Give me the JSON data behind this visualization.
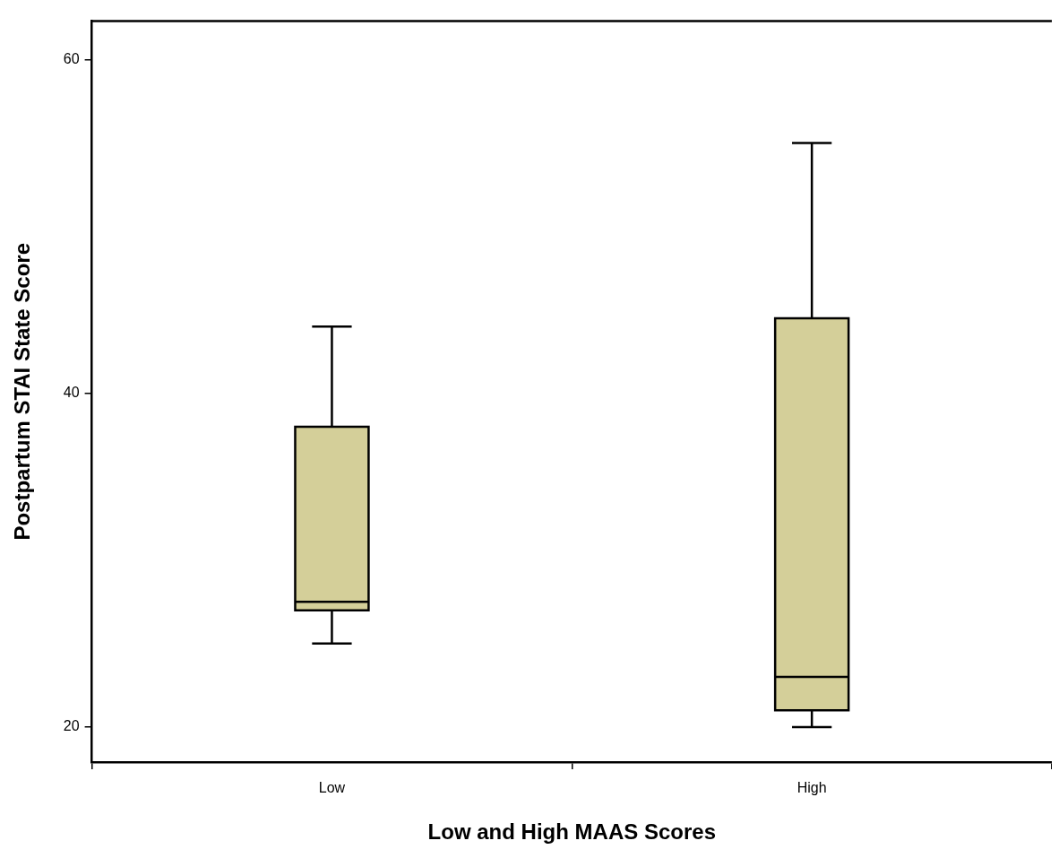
{
  "chart_data": {
    "type": "box",
    "xlabel": "Low and High MAAS Scores",
    "ylabel": "Postpartum STAI State Score",
    "categories": [
      "Low",
      "High"
    ],
    "series": [
      {
        "color": "#d4cf99",
        "boxes": [
          {
            "low": 25,
            "q1": 27,
            "median": 27.5,
            "q3": 38,
            "high": 44
          },
          {
            "low": 20,
            "q1": 21,
            "median": 23,
            "q3": 44.5,
            "high": 55
          }
        ]
      }
    ],
    "ylim": [
      17.9,
      62.3
    ],
    "yticks": [
      20,
      40,
      60
    ],
    "grid": false,
    "legend": false
  }
}
